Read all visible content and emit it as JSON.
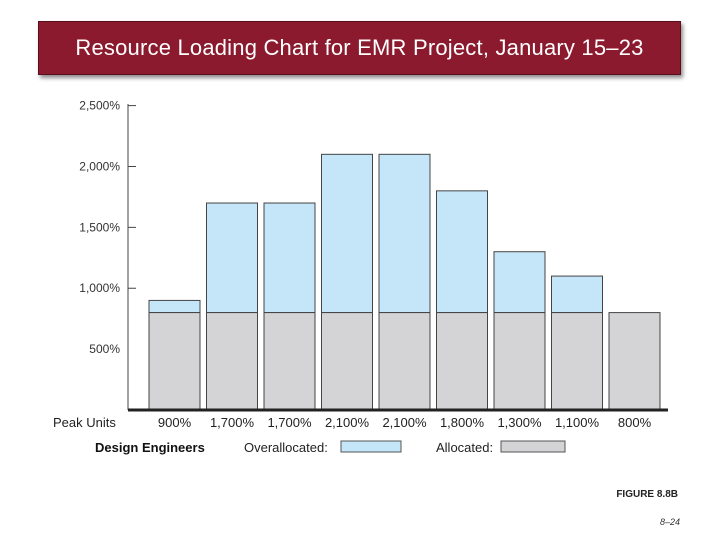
{
  "slide": {
    "title": "Resource Loading Chart for EMR Project, January 15–23",
    "figure_label": "FIGURE 8.8B",
    "page_number": "8–24"
  },
  "chart_data": {
    "type": "bar",
    "stacked": true,
    "y_ticks": [
      "2,500%",
      "2,000%",
      "1,500%",
      "1,000%",
      "500%"
    ],
    "y_tick_values": [
      2500,
      2000,
      1500,
      1000,
      500
    ],
    "ylim": [
      0,
      2500
    ],
    "peak_units_label": "Peak Units",
    "peak_units": [
      "900%",
      "1,700%",
      "1,700%",
      "2,100%",
      "2,100%",
      "1,800%",
      "1,300%",
      "1,100%",
      "800%"
    ],
    "totals": [
      900,
      1700,
      1700,
      2100,
      2100,
      1800,
      1300,
      1100,
      800
    ],
    "series": [
      {
        "name": "Allocated:",
        "values": [
          800,
          800,
          800,
          800,
          800,
          800,
          800,
          800,
          800
        ],
        "color": "#d4d4d6"
      },
      {
        "name": "Overallocated:",
        "values": [
          100,
          900,
          900,
          1300,
          1300,
          1000,
          500,
          300,
          0
        ],
        "color": "#c4e6f8"
      }
    ],
    "legend": {
      "resource": "Design Engineers",
      "overallocated_label": "Overallocated:",
      "allocated_label": "Allocated:",
      "position": "bottom"
    },
    "grid": false
  }
}
